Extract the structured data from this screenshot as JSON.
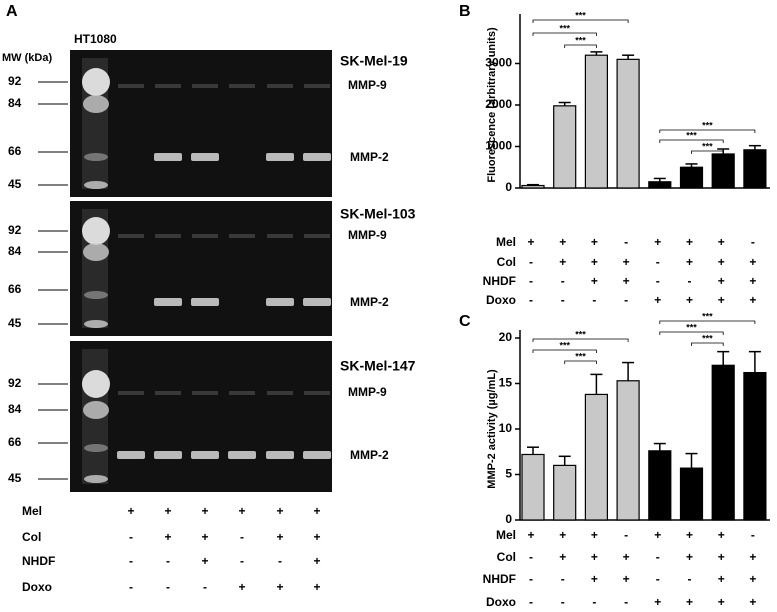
{
  "panel_a": {
    "letter": "A",
    "mw_label": "MW (kDa)",
    "ladder_lane": "HT1080",
    "gels": [
      {
        "cell_line": "SK-Mel-19",
        "mw_ticks": [
          92,
          84,
          66,
          45
        ],
        "bands": [
          "MMP-9",
          "MMP-2"
        ]
      },
      {
        "cell_line": "SK-Mel-103",
        "mw_ticks": [
          92,
          84,
          66,
          45
        ],
        "bands": [
          "MMP-9",
          "MMP-2"
        ]
      },
      {
        "cell_line": "SK-Mel-147",
        "mw_ticks": [
          92,
          84,
          66,
          45
        ],
        "bands": [
          "MMP-9",
          "MMP-2"
        ]
      }
    ],
    "conditions": [
      {
        "label": "Mel",
        "signs": [
          "+",
          "+",
          "+",
          "+",
          "+",
          "+"
        ]
      },
      {
        "label": "Col",
        "signs": [
          "-",
          "+",
          "+",
          "-",
          "+",
          "+"
        ]
      },
      {
        "label": "NHDF",
        "signs": [
          "-",
          "-",
          "+",
          "-",
          "-",
          "+"
        ]
      },
      {
        "label": "Doxo",
        "signs": [
          "-",
          "-",
          "-",
          "+",
          "+",
          "+"
        ]
      }
    ]
  },
  "chart_data": [
    {
      "type": "bar",
      "panel": "B",
      "ylabel": "Fluorescence (arbitrary units)",
      "ylim": [
        0,
        4000
      ],
      "yticks": [
        0,
        1000,
        2000,
        3000
      ],
      "values": [
        60,
        1980,
        3200,
        3100,
        150,
        500,
        820,
        920
      ],
      "errors": [
        20,
        80,
        80,
        100,
        80,
        80,
        120,
        100
      ],
      "colors": [
        "#c8c8c8",
        "#c8c8c8",
        "#c8c8c8",
        "#c8c8c8",
        "#000000",
        "#000000",
        "#000000",
        "#000000"
      ],
      "significance": [
        {
          "between": [
            0,
            3
          ],
          "label": "***"
        },
        {
          "between": [
            0,
            2
          ],
          "label": "***"
        },
        {
          "between": [
            1,
            2
          ],
          "label": "***"
        },
        {
          "between": [
            4,
            7
          ],
          "label": "***"
        },
        {
          "between": [
            4,
            6
          ],
          "label": "***"
        },
        {
          "between": [
            5,
            6
          ],
          "label": "***"
        }
      ],
      "conditions": [
        {
          "label": "Mel",
          "signs": [
            "+",
            "+",
            "+",
            "-",
            "+",
            "+",
            "+",
            "-"
          ]
        },
        {
          "label": "Col",
          "signs": [
            "-",
            "+",
            "+",
            "+",
            "-",
            "+",
            "+",
            "+"
          ]
        },
        {
          "label": "NHDF",
          "signs": [
            "-",
            "-",
            "+",
            "+",
            "-",
            "-",
            "+",
            "+"
          ]
        },
        {
          "label": "Doxo",
          "signs": [
            "-",
            "-",
            "-",
            "-",
            "+",
            "+",
            "+",
            "+"
          ]
        }
      ]
    },
    {
      "type": "bar",
      "panel": "C",
      "ylabel": "MMP-2 activity (µg/mL)",
      "ylim": [
        0,
        20
      ],
      "yticks": [
        0,
        5,
        10,
        15,
        20
      ],
      "values": [
        7.2,
        6.0,
        13.8,
        15.3,
        7.6,
        5.7,
        17.0,
        16.2
      ],
      "errors": [
        0.8,
        1.0,
        2.2,
        2.0,
        0.8,
        1.6,
        1.5,
        2.3
      ],
      "colors": [
        "#c8c8c8",
        "#c8c8c8",
        "#c8c8c8",
        "#c8c8c8",
        "#000000",
        "#000000",
        "#000000",
        "#000000"
      ],
      "significance": [
        {
          "between": [
            0,
            3
          ],
          "label": "***"
        },
        {
          "between": [
            0,
            2
          ],
          "label": "***"
        },
        {
          "between": [
            1,
            2
          ],
          "label": "***"
        },
        {
          "between": [
            4,
            7
          ],
          "label": "***"
        },
        {
          "between": [
            4,
            6
          ],
          "label": "***"
        },
        {
          "between": [
            5,
            6
          ],
          "label": "***"
        }
      ],
      "conditions": [
        {
          "label": "Mel",
          "signs": [
            "+",
            "+",
            "+",
            "-",
            "+",
            "+",
            "+",
            "-"
          ]
        },
        {
          "label": "Col",
          "signs": [
            "-",
            "+",
            "+",
            "+",
            "-",
            "+",
            "+",
            "+"
          ]
        },
        {
          "label": "NHDF",
          "signs": [
            "-",
            "-",
            "+",
            "+",
            "-",
            "-",
            "+",
            "+"
          ]
        },
        {
          "label": "Doxo",
          "signs": [
            "-",
            "-",
            "-",
            "-",
            "+",
            "+",
            "+",
            "+"
          ]
        }
      ]
    }
  ]
}
